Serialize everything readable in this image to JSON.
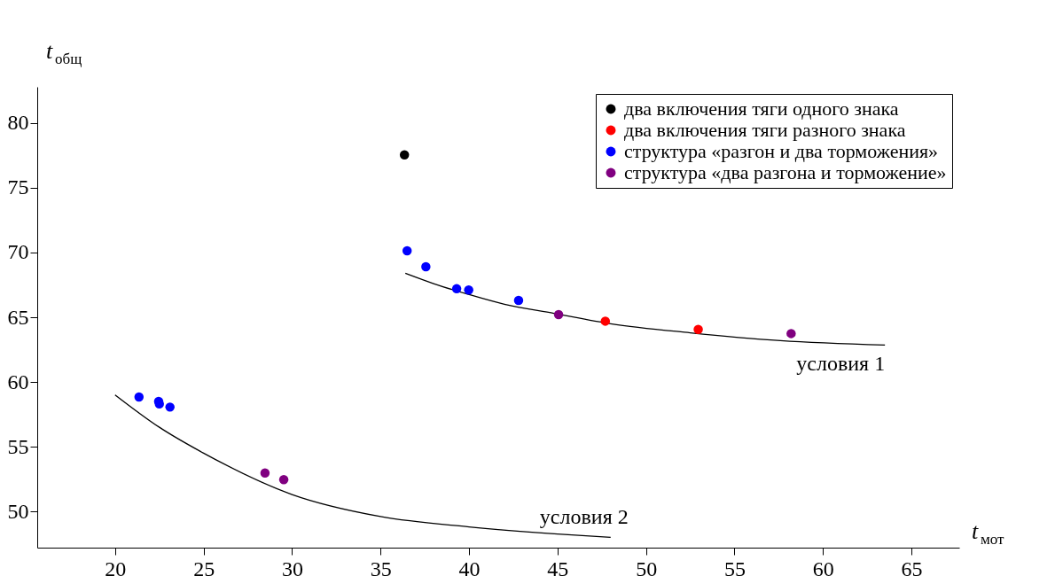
{
  "chart_data": {
    "type": "scatter",
    "xlabel": "t$_{мот}$",
    "ylabel": "t$_{общ}$",
    "xlim": [
      15.6,
      67.7
    ],
    "ylim": [
      47.2,
      82.8
    ],
    "xticks": [
      20,
      25,
      30,
      35,
      40,
      45,
      50,
      55,
      60,
      65
    ],
    "yticks": [
      50,
      55,
      60,
      65,
      70,
      75,
      80
    ],
    "grid": false,
    "legend": "top right",
    "marker": "circle",
    "series": [
      {
        "name": "два включения тяги одного знака",
        "color": "#000000",
        "x": [
          36.35
        ],
        "values": [
          77.55
        ]
      },
      {
        "name": "два включения тяги разного знака",
        "color": "#ff0000",
        "x": [
          47.7,
          52.95
        ],
        "values": [
          64.7,
          64.06
        ]
      },
      {
        "name": "структура «разгон и два торможения»",
        "color": "#0000ff",
        "x": [
          36.5,
          37.56,
          39.3,
          39.98,
          42.8,
          21.35,
          22.46,
          22.5,
          23.1
        ],
        "values": [
          70.13,
          68.9,
          67.2,
          67.1,
          66.3,
          58.84,
          58.5,
          58.3,
          58.06
        ]
      },
      {
        "name": "структура «два разгона и торможение»",
        "color": "#800080",
        "x": [
          45.06,
          58.2,
          28.47,
          29.53
        ],
        "values": [
          65.2,
          63.74,
          52.97,
          52.45
        ]
      },
      {
        "type": "line",
        "color": "#000000",
        "marker": "none",
        "x": [
          36.4,
          38,
          40,
          42,
          44.8,
          48,
          52.5,
          57.6,
          63.5
        ],
        "values": [
          68.4,
          67.6,
          66.75,
          66.0,
          65.3,
          64.5,
          63.8,
          63.2,
          62.85
        ]
      },
      {
        "type": "line",
        "color": "#000000",
        "marker": "none",
        "x": [
          20,
          22.5,
          25,
          30,
          35,
          40,
          45,
          48
        ],
        "values": [
          59.0,
          56.5,
          54.5,
          51.3,
          49.6,
          48.8,
          48.25,
          48.0
        ]
      }
    ],
    "annotations": [
      "условия 1",
      "условия 2"
    ]
  }
}
